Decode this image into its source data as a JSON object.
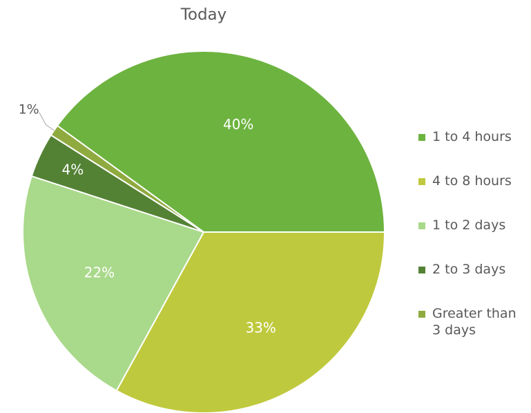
{
  "chart_data": {
    "type": "pie",
    "title": "Today",
    "categories": [
      "1 to 4 hours",
      "4 to 8 hours",
      "1 to 2 days",
      "2 to 3 days",
      "Greater than 3 days"
    ],
    "values": [
      40,
      33,
      22,
      4,
      1
    ],
    "value_labels": [
      "40%",
      "33%",
      "22%",
      "4%",
      "1%"
    ],
    "colors": [
      "#6db33f",
      "#bfc93d",
      "#a9d98a",
      "#548235",
      "#8faa3f"
    ],
    "legend": "right"
  }
}
